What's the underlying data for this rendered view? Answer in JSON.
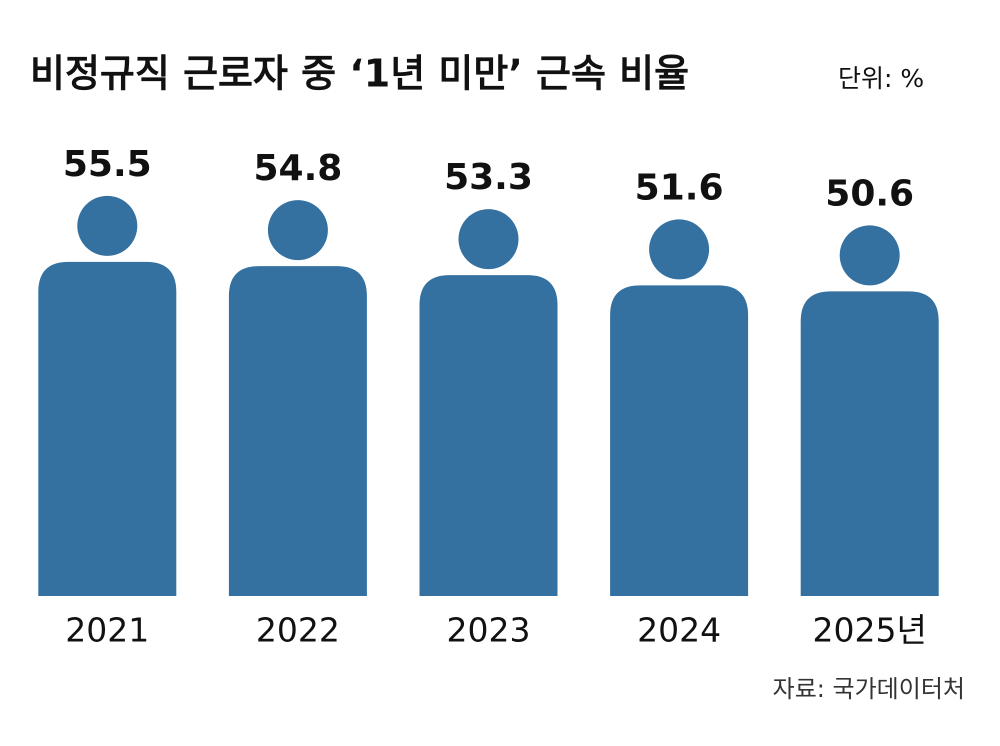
{
  "chart_data": {
    "type": "pictogram-bar",
    "title": "비정규직 근로자 중 ‘1년 미만’ 근속 비율",
    "unit": "단위: %",
    "categories": [
      "2021",
      "2022",
      "2023",
      "2024",
      "2025년"
    ],
    "values": [
      55.5,
      54.8,
      53.3,
      51.6,
      50.6
    ],
    "color": "#3471a0",
    "source": "자료: 국가데이터처"
  }
}
